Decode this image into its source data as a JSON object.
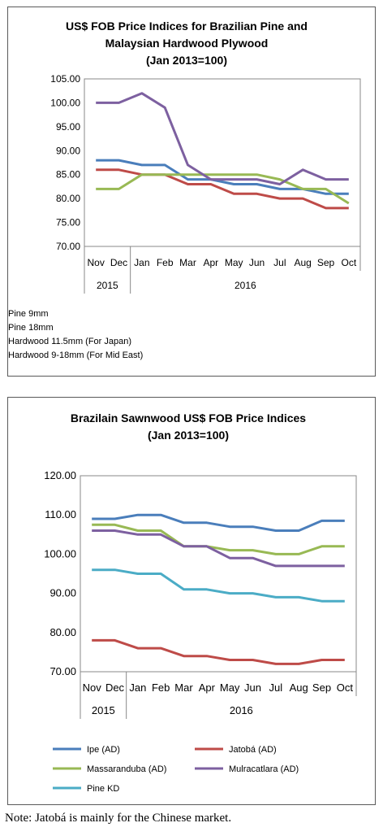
{
  "charts": [
    {
      "title_lines": [
        "US$ FOB Price Indices for Brazilian Pine and",
        "Malaysian Hardwood Plywood",
        "(Jan 2013=100)"
      ],
      "month_labels": [
        "Nov",
        "Dec",
        "Jan",
        "Feb",
        "Mar",
        "Apr",
        "May",
        "Jun",
        "Jul",
        "Aug",
        "Sep",
        "Oct"
      ],
      "year_labels": [
        "2015",
        "2016"
      ],
      "tick_labels": [
        "105.00",
        "100.00",
        "95.00",
        "90.00",
        "85.00",
        "80.00",
        "75.00",
        "70.00"
      ]
    },
    {
      "title_lines": [
        "Brazilain Sawnwood US$ FOB Price Indices",
        "(Jan 2013=100)"
      ],
      "month_labels": [
        "Nov",
        "Dec",
        "Jan",
        "Feb",
        "Mar",
        "Apr",
        "May",
        "Jun",
        "Jul",
        "Aug",
        "Sep",
        "Oct"
      ],
      "year_labels": [
        "2015",
        "2016"
      ],
      "tick_labels": [
        "120.00",
        "110.00",
        "100.00",
        "90.00",
        "80.00",
        "70.00"
      ]
    }
  ],
  "note": "Note: Jatobá is mainly for the Chinese market.",
  "chart_data": [
    {
      "type": "line",
      "title": "US$ FOB Price Indices for Brazilian Pine and Malaysian Hardwood Plywood (Jan 2013=100)",
      "categories": [
        "Nov 2015",
        "Dec 2015",
        "Jan 2016",
        "Feb 2016",
        "Mar 2016",
        "Apr 2016",
        "May 2016",
        "Jun 2016",
        "Jul 2016",
        "Aug 2016",
        "Sep 2016",
        "Oct 2016"
      ],
      "ylim": [
        70,
        105
      ],
      "grid": false,
      "legend": "bottom",
      "series": [
        {
          "name": "Pine 9mm",
          "color": "#4a7ebb",
          "values": [
            88,
            88,
            87,
            87,
            84,
            84,
            83,
            83,
            82,
            82,
            81,
            81
          ]
        },
        {
          "name": "Pine 18mm",
          "color": "#be4b48",
          "values": [
            86,
            86,
            85,
            85,
            83,
            83,
            81,
            81,
            80,
            80,
            78,
            78
          ]
        },
        {
          "name": "Hardwood 11.5mm (For Japan)",
          "color": "#98b954",
          "values": [
            82,
            82,
            85,
            85,
            85,
            85,
            85,
            85,
            84,
            82,
            82,
            79
          ]
        },
        {
          "name": "Hardwood 9-18mm (For Mid East)",
          "color": "#7d60a0",
          "values": [
            100,
            100,
            102,
            99,
            87,
            84,
            84,
            84,
            83,
            86,
            84,
            84
          ]
        }
      ]
    },
    {
      "type": "line",
      "title": "Brazilain Sawnwood US$ FOB Price Indices (Jan 2013=100)",
      "categories": [
        "Nov 2015",
        "Dec 2015",
        "Jan 2016",
        "Feb 2016",
        "Mar 2016",
        "Apr 2016",
        "May 2016",
        "Jun 2016",
        "Jul 2016",
        "Aug 2016",
        "Sep 2016",
        "Oct 2016"
      ],
      "ylim": [
        70,
        120
      ],
      "grid": false,
      "legend": "bottom",
      "series": [
        {
          "name": "Ipe (AD)",
          "color": "#4a7ebb",
          "values": [
            109,
            109,
            110,
            110,
            108,
            108,
            107,
            107,
            106,
            106,
            108.5,
            108.5
          ]
        },
        {
          "name": "Jatobá (AD)",
          "color": "#be4b48",
          "values": [
            78,
            78,
            76,
            76,
            74,
            74,
            73,
            73,
            72,
            72,
            73,
            73
          ]
        },
        {
          "name": "Massaranduba (AD)",
          "color": "#98b954",
          "values": [
            107.5,
            107.5,
            106,
            106,
            102,
            102,
            101,
            101,
            100,
            100,
            102,
            102
          ]
        },
        {
          "name": "Mulracatlara (AD)",
          "color": "#7d60a0",
          "values": [
            106,
            106,
            105,
            105,
            102,
            102,
            99,
            99,
            97,
            97,
            97,
            97
          ]
        },
        {
          "name": "Pine KD",
          "color": "#4bacc6",
          "values": [
            96,
            96,
            95,
            95,
            91,
            91,
            90,
            90,
            89,
            89,
            88,
            88
          ]
        }
      ]
    }
  ]
}
